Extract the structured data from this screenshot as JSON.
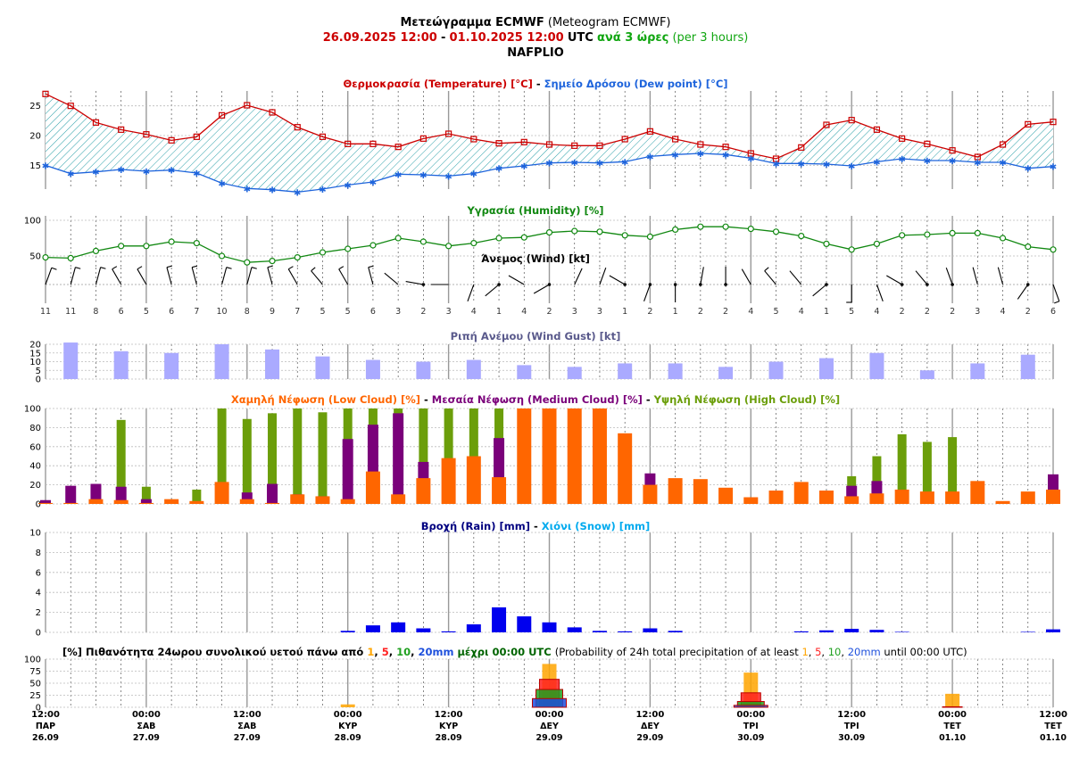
{
  "header": {
    "title_bold": "Μετεώγραμμα ECMWF",
    "title_rest": "(Meteogram ECMWF)",
    "start": "26.09.2025 12:00",
    "dash": "-",
    "end": "01.10.2025 12:00",
    "utc": "UTC",
    "every": "ανά 3 ώρες",
    "every_en": "(per 3 hours)",
    "location": "NAFPLIO"
  },
  "colors": {
    "temperature": "#cc0000",
    "dewpoint": "#1e64dc",
    "humidity": "#118811",
    "gust": "#aaaaff",
    "low_cloud": "#ff6600",
    "medium_cloud": "#7a007a",
    "high_cloud": "#6b9e0a",
    "rain": "#0000ee",
    "snow": "#00aaee",
    "p1": "#ffa500",
    "p5": "#ff2020",
    "p10": "#20a020",
    "p20": "#1e50dc"
  },
  "chart_data": [
    {
      "id": "temperature",
      "type": "line",
      "title_parts": [
        "Θερμοκρασία (Temperature) [°C]",
        " - ",
        "Σημείο Δρόσου (Dew point) [°C]"
      ],
      "yticks": [
        15,
        20,
        25
      ],
      "ylim": [
        11,
        27.5
      ],
      "series": [
        {
          "name": "Θερμοκρασία (Temperature) [°C]",
          "values": [
            27.0,
            25.0,
            22.2,
            21.0,
            20.2,
            19.2,
            19.8,
            23.4,
            25.1,
            23.9,
            21.4,
            19.8,
            18.6,
            18.6,
            18.1,
            19.5,
            20.3,
            19.4,
            18.7,
            18.9,
            18.5,
            18.3,
            18.3,
            19.4,
            20.7,
            19.4,
            18.5,
            18.1,
            17.0,
            16.1,
            18.0,
            21.8,
            22.6,
            21.0,
            19.5,
            18.6,
            17.5,
            16.4,
            18.5,
            21.9,
            22.3
          ]
        },
        {
          "name": "Σημείο Δρόσου (Dew point) [°C]",
          "values": [
            15.0,
            13.6,
            13.9,
            14.3,
            14.0,
            14.2,
            13.7,
            12.0,
            11.1,
            10.9,
            10.5,
            11.0,
            11.7,
            12.2,
            13.5,
            13.4,
            13.2,
            13.6,
            14.5,
            14.9,
            15.4,
            15.5,
            15.4,
            15.6,
            16.5,
            16.8,
            17.0,
            16.8,
            16.2,
            15.3,
            15.3,
            15.2,
            14.9,
            15.6,
            16.1,
            15.8,
            15.8,
            15.5,
            15.5,
            14.5,
            14.8
          ]
        }
      ]
    },
    {
      "id": "humidity",
      "type": "line",
      "title": "Υγρασία (Humidity) [%]",
      "yticks": [
        50,
        100
      ],
      "ylim": [
        30,
        105
      ],
      "series": [
        {
          "name": "Υγρασία (Humidity) [%]",
          "values": [
            48,
            47,
            57,
            64,
            64,
            70,
            68,
            50,
            41,
            43,
            48,
            55,
            60,
            65,
            75,
            70,
            64,
            68,
            75,
            76,
            83,
            85,
            84,
            79,
            77,
            87,
            91,
            91,
            88,
            84,
            78,
            67,
            59,
            67,
            79,
            80,
            82,
            82,
            75,
            63,
            59
          ]
        }
      ]
    },
    {
      "id": "wind",
      "type": "table",
      "title": "Άνεμος (Wind) [kt]",
      "speeds": [
        11,
        11,
        8,
        6,
        5,
        6,
        7,
        10,
        8,
        9,
        7,
        5,
        5,
        6,
        3,
        2,
        3,
        4,
        1,
        4,
        2,
        3,
        3,
        1,
        2,
        1,
        2,
        2,
        4,
        5,
        4,
        1,
        5,
        4,
        2,
        2,
        2,
        3,
        4,
        2,
        6
      ],
      "directions_deg": [
        20,
        15,
        15,
        330,
        330,
        345,
        345,
        15,
        15,
        345,
        330,
        320,
        330,
        345,
        310,
        280,
        270,
        200,
        230,
        300,
        240,
        25,
        20,
        300,
        200,
        180,
        10,
        360,
        330,
        320,
        320,
        230,
        180,
        160,
        300,
        320,
        340,
        345,
        345,
        215,
        160
      ]
    },
    {
      "id": "gust",
      "type": "bar",
      "title": "Ριπή Ανέμου (Wind Gust) [kt]",
      "yticks": [
        0,
        5,
        10,
        15,
        20
      ],
      "ylim": [
        0,
        20
      ],
      "values": [
        null,
        21,
        null,
        16,
        null,
        15,
        null,
        20,
        null,
        17,
        null,
        13,
        null,
        11,
        null,
        10,
        null,
        11,
        null,
        8,
        null,
        7,
        null,
        9,
        null,
        9,
        null,
        7,
        null,
        10,
        null,
        12,
        null,
        15,
        null,
        5,
        null,
        9,
        null,
        14
      ]
    },
    {
      "id": "clouds",
      "type": "bar",
      "title_parts": [
        "Χαμηλή Νέφωση (Low Cloud) [%]",
        " - ",
        "Μεσαία Νέφωση (Medium Cloud) [%]",
        " - ",
        "Υψηλή Νέφωση (High Cloud) [%]"
      ],
      "yticks": [
        0,
        20,
        40,
        60,
        80,
        100
      ],
      "ylim": [
        0,
        100
      ],
      "series": [
        {
          "name": "Χαμηλή Νέφωση (Low Cloud) [%]",
          "values": [
            1,
            1,
            5,
            4,
            1,
            5,
            3,
            23,
            5,
            1,
            10,
            8,
            5,
            34,
            10,
            27,
            48,
            50,
            28,
            100,
            100,
            100,
            100,
            74,
            20,
            27,
            26,
            17,
            7,
            14,
            23,
            14,
            8,
            11,
            15,
            13,
            13,
            24,
            3,
            13,
            15
          ]
        },
        {
          "name": "Μεσαία Νέφωση (Medium Cloud) [%]",
          "values": [
            4,
            19,
            21,
            18,
            5,
            0,
            0,
            0,
            12,
            21,
            10,
            8,
            68,
            83,
            95,
            44,
            0,
            0,
            69,
            0,
            0,
            0,
            0,
            0,
            32,
            0,
            0,
            0,
            0,
            0,
            0,
            0,
            19,
            24,
            0,
            0,
            0,
            0,
            0,
            0,
            31
          ]
        },
        {
          "name": "Υψηλή Νέφωση (High Cloud) [%]",
          "values": [
            0,
            0,
            0,
            88,
            18,
            0,
            15,
            100,
            89,
            95,
            100,
            96,
            100,
            100,
            100,
            100,
            100,
            100,
            100,
            0,
            0,
            0,
            0,
            0,
            0,
            0,
            0,
            0,
            0,
            0,
            0,
            0,
            29,
            50,
            73,
            65,
            70,
            0,
            0,
            0,
            0
          ]
        }
      ]
    },
    {
      "id": "precipitation",
      "type": "bar",
      "title_parts": [
        "Βροχή (Rain) [mm]",
        " - ",
        "Χιόνι (Snow) [mm]"
      ],
      "yticks": [
        0,
        2,
        4,
        6,
        8,
        10
      ],
      "ylim": [
        0,
        10
      ],
      "series": [
        {
          "name": "Βροχή (Rain) [mm]",
          "values": [
            0,
            0,
            0,
            0,
            0,
            0,
            0,
            0,
            0,
            0,
            0,
            0,
            0.15,
            0.7,
            1.0,
            0.4,
            0.1,
            0.8,
            2.5,
            1.6,
            1.0,
            0.5,
            0.15,
            0.1,
            0.4,
            0.15,
            0,
            0,
            0,
            0,
            0.1,
            0.2,
            0.35,
            0.25,
            0.05,
            0,
            0,
            0,
            0,
            0.05,
            0.3
          ]
        },
        {
          "name": "Χιόνι (Snow) [mm]",
          "values": [
            0,
            0,
            0,
            0,
            0,
            0,
            0,
            0,
            0,
            0,
            0,
            0,
            0,
            0,
            0,
            0,
            0,
            0,
            0,
            0,
            0,
            0,
            0,
            0,
            0,
            0,
            0,
            0,
            0,
            0,
            0,
            0,
            0,
            0,
            0,
            0,
            0,
            0,
            0,
            0,
            0
          ]
        }
      ]
    },
    {
      "id": "probability",
      "type": "bar",
      "title_parts": [
        "[%] Πιθανότητα 24ωρου συνολικού υετού πάνω από",
        "1",
        "5",
        "10",
        "20mm",
        "μέχρι 00:00 UTC",
        "(Probability of 24h total precipitation of at least",
        "1",
        "5",
        "10",
        "20mm",
        "until 00:00 UTC)"
      ],
      "yticks": [
        0,
        25,
        50,
        75,
        100
      ],
      "ylim": [
        0,
        100
      ],
      "categories": [
        "27.09",
        "28.09",
        "29.09",
        "30.09",
        "01.10"
      ],
      "series": [
        {
          "name": "1mm",
          "values": [
            0,
            6,
            90,
            72,
            28
          ]
        },
        {
          "name": "5mm",
          "values": [
            0,
            0,
            58,
            30,
            1
          ]
        },
        {
          "name": "10mm",
          "values": [
            0,
            0,
            37,
            12,
            0
          ]
        },
        {
          "name": "20mm",
          "values": [
            0,
            0,
            18,
            4,
            0
          ]
        }
      ]
    }
  ],
  "x_axis": {
    "labels": [
      {
        "time": "12:00",
        "day": "ΠΑΡ",
        "date": "26.09"
      },
      {
        "time": "00:00",
        "day": "ΣΑΒ",
        "date": "27.09"
      },
      {
        "time": "12:00",
        "day": "ΣΑΒ",
        "date": "27.09"
      },
      {
        "time": "00:00",
        "day": "ΚΥΡ",
        "date": "28.09"
      },
      {
        "time": "12:00",
        "day": "ΚΥΡ",
        "date": "28.09"
      },
      {
        "time": "00:00",
        "day": "ΔΕΥ",
        "date": "29.09"
      },
      {
        "time": "12:00",
        "day": "ΔΕΥ",
        "date": "29.09"
      },
      {
        "time": "00:00",
        "day": "ΤΡΙ",
        "date": "30.09"
      },
      {
        "time": "12:00",
        "day": "ΤΡΙ",
        "date": "30.09"
      },
      {
        "time": "00:00",
        "day": "ΤΕΤ",
        "date": "01.10"
      },
      {
        "time": "12:00",
        "day": "ΤΕΤ",
        "date": "01.10"
      }
    ]
  }
}
